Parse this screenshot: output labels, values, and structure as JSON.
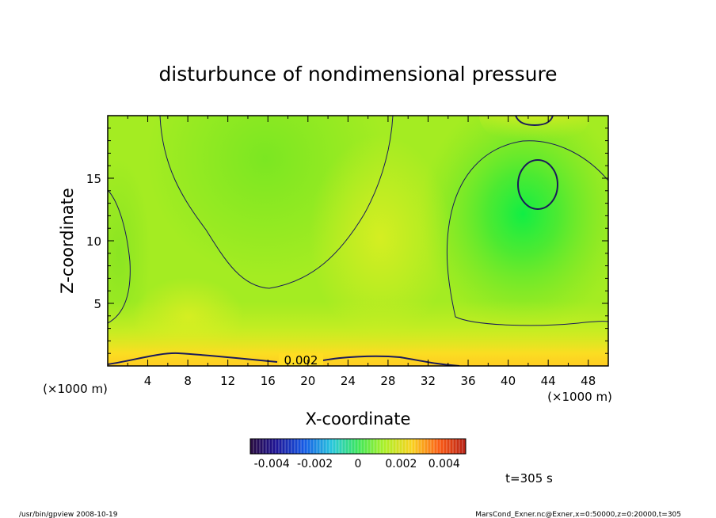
{
  "chart_data": {
    "type": "heatmap",
    "title": "disturbunce of nondimensional pressure",
    "xlabel": "X-coordinate",
    "ylabel": "Z-coordinate",
    "x_unit": "(×1000 m)",
    "y_unit": "(×1000 m)",
    "xlim": [
      0,
      50
    ],
    "ylim": [
      0,
      20
    ],
    "x_ticks": [
      4,
      8,
      12,
      16,
      20,
      24,
      28,
      32,
      36,
      40,
      44,
      48
    ],
    "y_ticks": [
      5,
      10,
      15
    ],
    "contour_label": "0.002",
    "colorbar": {
      "range": [
        -0.005,
        0.005
      ],
      "tick_labels": [
        "-0.004",
        "-0.002",
        "0",
        "0.002",
        "0.004"
      ],
      "tick_values": [
        -0.004,
        -0.002,
        0,
        0.002,
        0.004
      ]
    },
    "time_label": "t=305 s",
    "footer_left": "/usr/bin/gpview  2008-10-19",
    "footer_right": "MarsCond_Exner.nc@Exner,x=0:50000,z=0:20000,t=305"
  },
  "colors": {
    "background": "#ffffff",
    "field_base": "#99ee22",
    "field_warm": "#ffcc22",
    "field_cool": "#22ee44"
  }
}
